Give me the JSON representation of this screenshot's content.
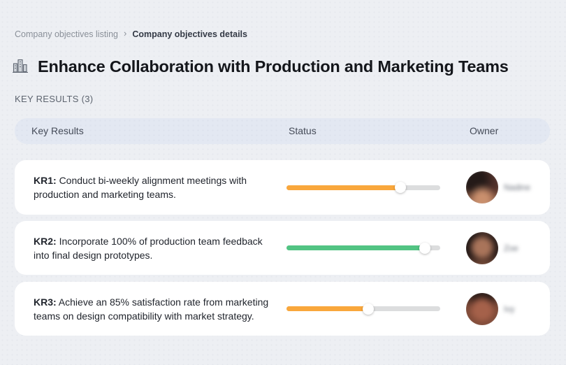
{
  "breadcrumb": {
    "separator": "›",
    "items": [
      {
        "label": "Company objectives listing",
        "active": false
      },
      {
        "label": "Company objectives details",
        "active": true
      }
    ]
  },
  "header": {
    "icon": "city-buildings-icon",
    "title": "Enhance Collaboration with Production and Marketing Teams"
  },
  "key_results_section": {
    "label": "KEY RESULTS (3)",
    "count": 3
  },
  "table": {
    "columns": {
      "key_results": "Key Results",
      "status": "Status",
      "owner": "Owner"
    },
    "rows": [
      {
        "id": "KR1",
        "label": "KR1:",
        "description": "Conduct bi-weekly alignment meetings with production and marketing teams.",
        "progress_percent": 74,
        "progress_color": "#F9A73C",
        "owner_name_blurred": "Nadine"
      },
      {
        "id": "KR2",
        "label": "KR2:",
        "description": "Incorporate 100% of production team feedback into final design prototypes.",
        "progress_percent": 90,
        "progress_color": "#52C483",
        "owner_name_blurred": "Zoe"
      },
      {
        "id": "KR3",
        "label": "KR3:",
        "description": "Achieve an 85% satisfaction rate from marketing teams on design compatibility with market strategy.",
        "progress_percent": 53,
        "progress_color": "#F9A73C",
        "owner_name_blurred": "Ivy"
      }
    ]
  },
  "colors": {
    "page_background": "#EDEFF3",
    "card_background": "#FFFFFF",
    "table_header_background": "#E3E8F2",
    "progress_track": "#DCDDDE",
    "progress_orange": "#F9A73C",
    "progress_green": "#52C483",
    "title_text": "#14161B",
    "muted_text": "#8A9099"
  }
}
